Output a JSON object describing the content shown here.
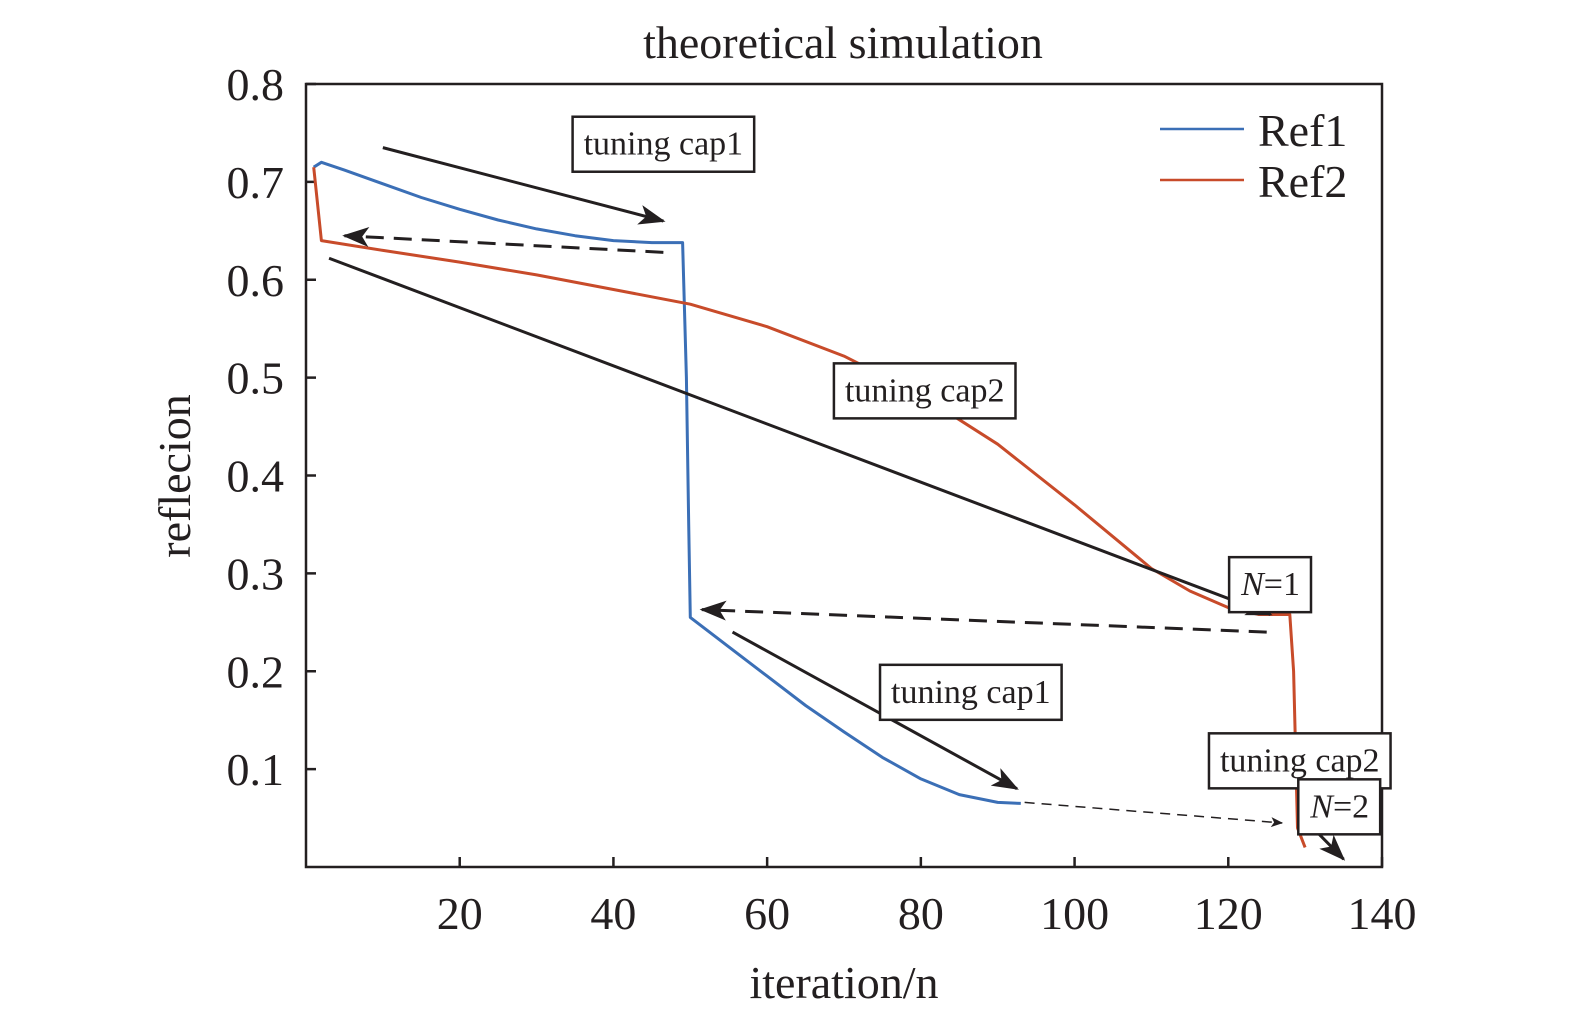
{
  "chart_data": {
    "type": "line",
    "title": "theoretical simulation",
    "xlabel": "iteration/n",
    "ylabel": "reflecion",
    "xlim": [
      0,
      140
    ],
    "ylim": [
      0,
      0.8
    ],
    "xticks": [
      20,
      40,
      60,
      80,
      100,
      120,
      140
    ],
    "yticks": [
      0.1,
      0.2,
      0.3,
      0.4,
      0.5,
      0.6,
      0.7,
      0.8
    ],
    "xtick_labels": [
      "20",
      "40",
      "60",
      "80",
      "100",
      "120",
      "140"
    ],
    "ytick_labels": [
      "0.1",
      "0.2",
      "0.3",
      "0.4",
      "0.5",
      "0.6",
      "0.7",
      "0.8"
    ],
    "grid": false,
    "legend": {
      "position": "top-right"
    },
    "series": [
      {
        "name": "Ref1",
        "color": "#3b6fb6",
        "points": [
          [
            1,
            0.715
          ],
          [
            2,
            0.72
          ],
          [
            5,
            0.712
          ],
          [
            10,
            0.698
          ],
          [
            15,
            0.684
          ],
          [
            20,
            0.672
          ],
          [
            25,
            0.661
          ],
          [
            30,
            0.652
          ],
          [
            35,
            0.645
          ],
          [
            40,
            0.64
          ],
          [
            45,
            0.638
          ],
          [
            49,
            0.638
          ],
          [
            49.5,
            0.5
          ],
          [
            49.8,
            0.35
          ],
          [
            50,
            0.255
          ],
          [
            55,
            0.225
          ],
          [
            60,
            0.195
          ],
          [
            65,
            0.165
          ],
          [
            70,
            0.138
          ],
          [
            75,
            0.112
          ],
          [
            80,
            0.09
          ],
          [
            85,
            0.074
          ],
          [
            90,
            0.066
          ],
          [
            93,
            0.065
          ]
        ]
      },
      {
        "name": "Ref2",
        "color": "#c84b2a",
        "points": [
          [
            1,
            0.715
          ],
          [
            2,
            0.64
          ],
          [
            10,
            0.63
          ],
          [
            20,
            0.618
          ],
          [
            30,
            0.605
          ],
          [
            40,
            0.59
          ],
          [
            50,
            0.575
          ],
          [
            60,
            0.552
          ],
          [
            70,
            0.522
          ],
          [
            80,
            0.482
          ],
          [
            90,
            0.432
          ],
          [
            100,
            0.37
          ],
          [
            110,
            0.305
          ],
          [
            115,
            0.282
          ],
          [
            120,
            0.265
          ],
          [
            124,
            0.258
          ],
          [
            128,
            0.258
          ],
          [
            128.5,
            0.2
          ],
          [
            129,
            0.04
          ],
          [
            130,
            0.02
          ]
        ]
      }
    ],
    "annotations": [
      {
        "kind": "label",
        "text": "tuning cap1",
        "x": 46.5,
        "y": 0.74
      },
      {
        "kind": "label",
        "text": "tuning cap2",
        "x": 80.5,
        "y": 0.488
      },
      {
        "kind": "label",
        "text": "tuning cap1",
        "x": 86.5,
        "y": 0.18
      },
      {
        "kind": "label",
        "text": "tuning cap2",
        "x": 129.3,
        "y": 0.11
      },
      {
        "kind": "label-italic-n",
        "italic": "N",
        "text": "=1",
        "x": 125.5,
        "y": 0.29
      },
      {
        "kind": "label-italic-n",
        "italic": "N",
        "text": "=2",
        "x": 134.5,
        "y": 0.063
      },
      {
        "kind": "arrow",
        "from": [
          10,
          0.735
        ],
        "to": [
          46.5,
          0.66
        ],
        "dashed": false,
        "thin": false
      },
      {
        "kind": "arrow",
        "from": [
          46.5,
          0.628
        ],
        "to": [
          5,
          0.645
        ],
        "dashed": true,
        "thin": false
      },
      {
        "kind": "arrow",
        "from": [
          3,
          0.622
        ],
        "to": [
          125.5,
          0.258
        ],
        "dashed": false,
        "thin": false
      },
      {
        "kind": "arrow",
        "from": [
          125,
          0.24
        ],
        "to": [
          51.5,
          0.263
        ],
        "dashed": true,
        "thin": false
      },
      {
        "kind": "arrow",
        "from": [
          55.5,
          0.24
        ],
        "to": [
          92.5,
          0.08
        ],
        "dashed": false,
        "thin": false
      },
      {
        "kind": "arrow",
        "from": [
          93.5,
          0.066
        ],
        "to": [
          127,
          0.045
        ],
        "dashed": true,
        "thin": true
      },
      {
        "kind": "arrow",
        "from": [
          131,
          0.04
        ],
        "to": [
          135,
          0.008
        ],
        "dashed": false,
        "thin": false
      }
    ]
  }
}
